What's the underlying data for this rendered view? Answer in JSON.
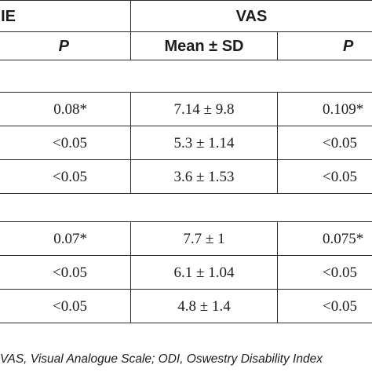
{
  "header": {
    "left_group_label": "IE",
    "right_group_label": "VAS",
    "columns": [
      "P",
      "Mean ± SD",
      "P"
    ]
  },
  "group_1_rows": [
    {
      "p_left": "0.08*",
      "vas_mean_sd": "7.14 ± 9.8",
      "p_right": "0.109*"
    },
    {
      "p_left": "<0.05",
      "vas_mean_sd": "5.3 ± 1.14",
      "p_right": "<0.05"
    },
    {
      "p_left": "<0.05",
      "vas_mean_sd": "3.6 ± 1.53",
      "p_right": "<0.05"
    }
  ],
  "group_2_rows": [
    {
      "p_left": "0.07*",
      "vas_mean_sd": "7.7 ± 1",
      "p_right": "0.075*"
    },
    {
      "p_left": "<0.05",
      "vas_mean_sd": "6.1 ± 1.04",
      "p_right": "<0.05"
    },
    {
      "p_left": "<0.05",
      "vas_mean_sd": "4.8 ± 1.4",
      "p_right": "<0.05"
    }
  ],
  "footnote": "VAS, Visual Analogue Scale; ODI, Oswestry Disability Index"
}
